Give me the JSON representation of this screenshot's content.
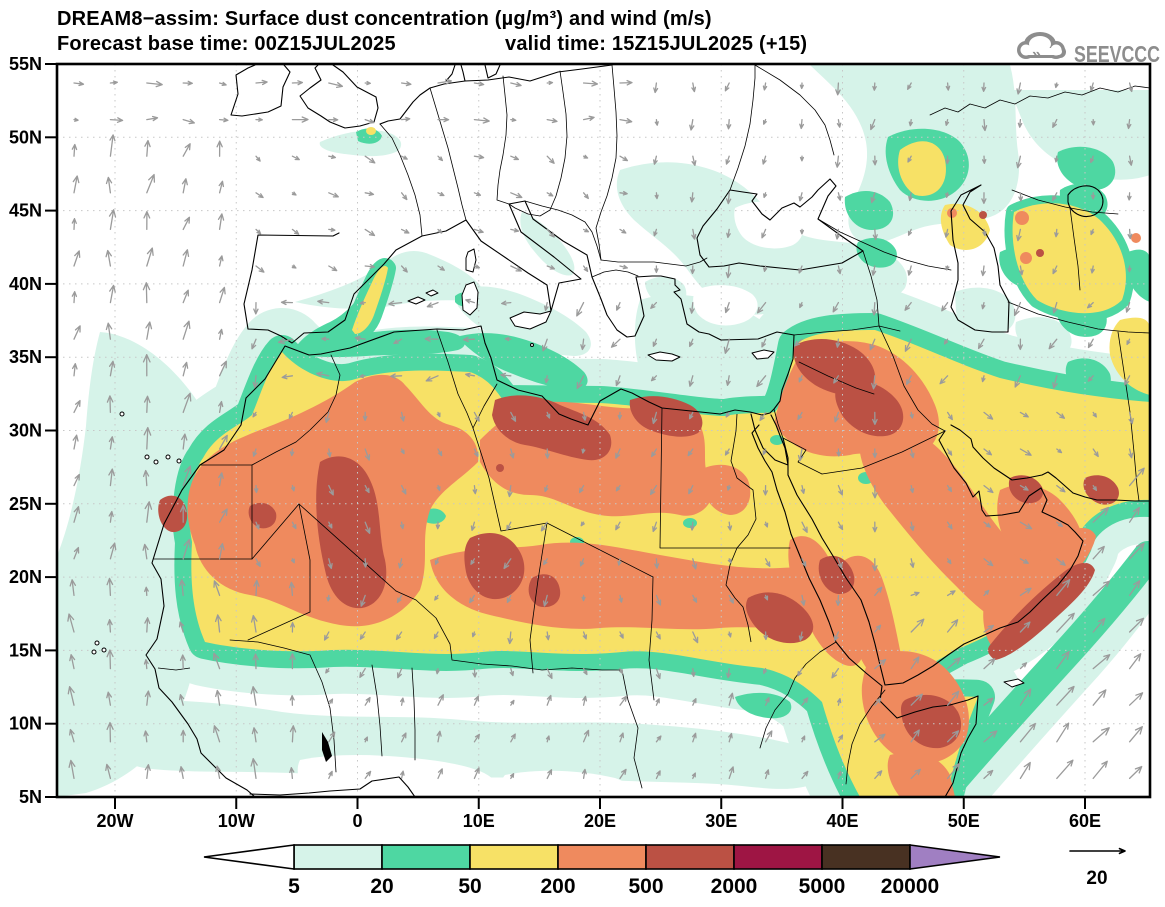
{
  "header": {
    "title": "DREAM8−assim: Surface dust concentration (µg/m³) and wind (m/s)",
    "forecast_base": "Forecast base time: 00Z15JUL2025",
    "valid_time": "valid time: 15Z15JUL2025 (+15)"
  },
  "logo": {
    "text": "SEEVCCC"
  },
  "axes": {
    "lat_labels": [
      "55N",
      "50N",
      "45N",
      "40N",
      "35N",
      "30N",
      "25N",
      "20N",
      "15N",
      "10N",
      "5N"
    ],
    "lon_labels": [
      "20W",
      "10W",
      "0",
      "10E",
      "20E",
      "30E",
      "40E",
      "50E",
      "60E"
    ]
  },
  "colorbar": {
    "labels": [
      "5",
      "20",
      "50",
      "200",
      "500",
      "2000",
      "5000",
      "20000"
    ],
    "colors": [
      "#d6f3e9",
      "#4ed7a2",
      "#f7e166",
      "#ef8a5e",
      "#bb5144",
      "#9e1544",
      "#483122"
    ],
    "under_arrow_color": "#ffffff",
    "over_arrow_color": "#a07fc2"
  },
  "wind_legend": {
    "label": "20"
  },
  "palette": {
    "pale": "#d6f3e9",
    "green": "#4ed7a2",
    "yellow": "#f7e166",
    "orange": "#ef8a5e",
    "red": "#bb5144",
    "maroon": "#9e1544",
    "brown": "#483122",
    "purple": "#a07fc2",
    "wind_gray": "#9b9b9b",
    "grid_gray": "#c7c7c7",
    "logo_gray": "#8d8d8d"
  }
}
